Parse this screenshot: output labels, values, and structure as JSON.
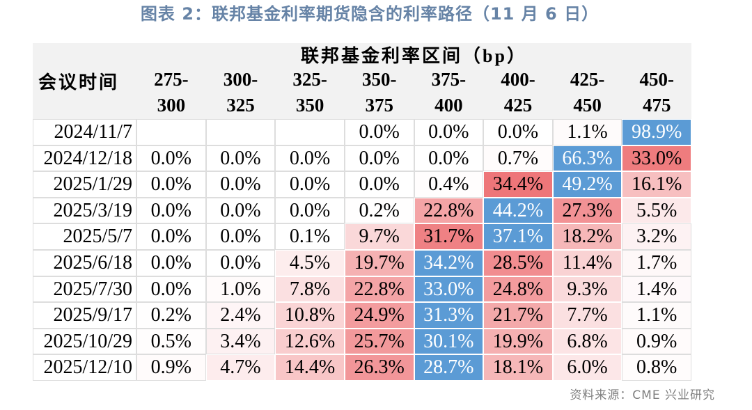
{
  "figure": {
    "source": "资料来源：CME 兴业研究"
  },
  "colors": {
    "title": "#6683a6",
    "header_bg": "#f2f2f2",
    "row_max_fill": "#5b9bd5",
    "row_max_text": "#ffffff",
    "scale_low": "#ffffff",
    "scale_high": "#ee7679",
    "grid_line": "#dddddd",
    "source_text": "#7f7f7f"
  },
  "chart_data": {
    "type": "table",
    "title": "图表 2：联邦基金利率期货隐含的利率路径（11 月 6 日）",
    "row_header": "会议时间",
    "column_group": "联邦基金利率区间（bp）",
    "columns": [
      {
        "line1": "275-",
        "line2": "300"
      },
      {
        "line1": "300-",
        "line2": "325"
      },
      {
        "line1": "325-",
        "line2": "350"
      },
      {
        "line1": "350-",
        "line2": "375"
      },
      {
        "line1": "375-",
        "line2": "400"
      },
      {
        "line1": "400-",
        "line2": "425"
      },
      {
        "line1": "425-",
        "line2": "450"
      },
      {
        "line1": "450-",
        "line2": "475"
      }
    ],
    "rows": [
      {
        "date": "2024/11/7",
        "values": [
          null,
          null,
          null,
          "0.0%",
          "0.0%",
          "0.0%",
          "1.1%",
          "98.9%"
        ]
      },
      {
        "date": "2024/12/18",
        "values": [
          "0.0%",
          "0.0%",
          "0.0%",
          "0.0%",
          "0.0%",
          "0.7%",
          "66.3%",
          "33.0%"
        ]
      },
      {
        "date": "2025/1/29",
        "values": [
          "0.0%",
          "0.0%",
          "0.0%",
          "0.0%",
          "0.4%",
          "34.4%",
          "49.2%",
          "16.1%"
        ]
      },
      {
        "date": "2025/3/19",
        "values": [
          "0.0%",
          "0.0%",
          "0.0%",
          "0.2%",
          "22.8%",
          "44.2%",
          "27.3%",
          "5.5%"
        ]
      },
      {
        "date": "2025/5/7",
        "values": [
          "0.0%",
          "0.0%",
          "0.1%",
          "9.7%",
          "31.7%",
          "37.1%",
          "18.2%",
          "3.2%"
        ]
      },
      {
        "date": "2025/6/18",
        "values": [
          "0.0%",
          "0.0%",
          "4.5%",
          "19.7%",
          "34.2%",
          "28.5%",
          "11.4%",
          "1.7%"
        ]
      },
      {
        "date": "2025/7/30",
        "values": [
          "0.0%",
          "1.0%",
          "7.8%",
          "22.8%",
          "33.0%",
          "24.8%",
          "9.3%",
          "1.4%"
        ]
      },
      {
        "date": "2025/9/17",
        "values": [
          "0.2%",
          "2.4%",
          "10.8%",
          "24.9%",
          "31.3%",
          "21.7%",
          "7.7%",
          "1.1%"
        ]
      },
      {
        "date": "2025/10/29",
        "values": [
          "0.5%",
          "3.4%",
          "12.6%",
          "25.7%",
          "30.1%",
          "19.9%",
          "6.8%",
          "0.9%"
        ]
      },
      {
        "date": "2025/12/10",
        "values": [
          "0.9%",
          "4.7%",
          "14.4%",
          "26.3%",
          "28.7%",
          "18.1%",
          "6.0%",
          "0.8%"
        ]
      }
    ]
  }
}
